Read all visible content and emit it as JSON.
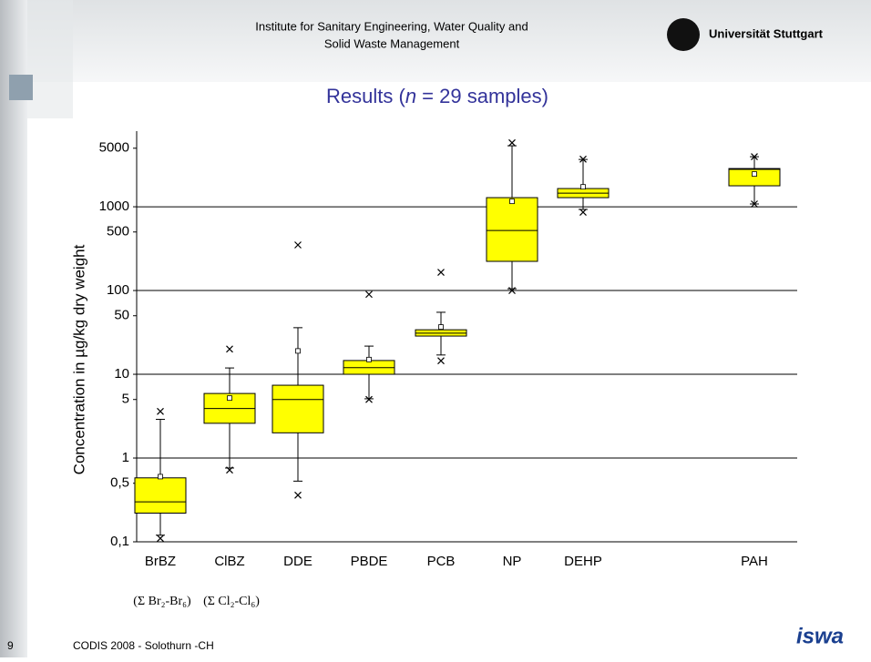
{
  "header": {
    "institute_lines": [
      "Institute for Sanitary Engineering, Water Quality and",
      "Solid Waste Management"
    ],
    "university": "Universität Stuttgart"
  },
  "footer": {
    "page_number": "9",
    "conference": "CODIS 2008 - Solothurn -CH",
    "logo": "iswa"
  },
  "chart_data": {
    "type": "box",
    "title_parts": [
      "Results (",
      "n",
      " = 29 samples)"
    ],
    "y_label": "Concentration in µg/kg dry weight",
    "categories": [
      "BrBZ",
      "ClBZ",
      "DDE",
      "PBDE",
      "PCB",
      "NP",
      "DEHP",
      "PAH"
    ],
    "category_notes": [
      "(Σ Br₂-Br₆)",
      "(Σ Cl₂-Cl₆)",
      null,
      null,
      null,
      null,
      null,
      null
    ],
    "box_color": "#ffff00",
    "log_scale": true,
    "grid": "decades",
    "ylim": [
      0.1,
      8000
    ],
    "yticks": [
      {
        "value": 0.1,
        "label": "0,1"
      },
      {
        "value": 0.5,
        "label": "0,5"
      },
      1,
      5,
      10,
      50,
      100,
      500,
      1000,
      5000
    ],
    "boxes": [
      {
        "min": 0.11,
        "whisker_low": 0.12,
        "q1": 0.22,
        "median": 0.3,
        "q3": 0.58,
        "whisker_high": 2.9,
        "max": 3.6,
        "mean": 0.6
      },
      {
        "min": 0.72,
        "whisker_low": 0.76,
        "q1": 2.6,
        "median": 3.9,
        "q3": 5.9,
        "whisker_high": 11.9,
        "max": 20,
        "mean": 5.2
      },
      {
        "min": 0.36,
        "whisker_low": 0.53,
        "q1": 2.0,
        "median": 5.0,
        "q3": 7.4,
        "whisker_high": 36,
        "max": 350,
        "mean": 19
      },
      {
        "min": 5,
        "whisker_low": 5.1,
        "q1": 10,
        "median": 12,
        "q3": 14.6,
        "whisker_high": 21.7,
        "max": 90,
        "mean": 15
      },
      {
        "min": 14.5,
        "whisker_low": 17,
        "q1": 28.6,
        "median": 31,
        "q3": 34,
        "whisker_high": 55,
        "max": 165,
        "mean": 36.7
      },
      {
        "min": 100,
        "whisker_low": 105,
        "q1": 223,
        "median": 521,
        "q3": 1285,
        "whisker_high": 5350,
        "max": 5800,
        "mean": 1160
      },
      {
        "min": 860,
        "whisker_low": 930,
        "q1": 1285,
        "median": 1455,
        "q3": 1650,
        "whisker_high": 3670,
        "max": 3700,
        "mean": 1730
      },
      {
        "min": 1080,
        "whisker_low": 1080,
        "q1": 1780,
        "median": 2800,
        "q3": 2860,
        "whisker_high": 3960,
        "max": 3960,
        "mean": 2460
      }
    ]
  }
}
